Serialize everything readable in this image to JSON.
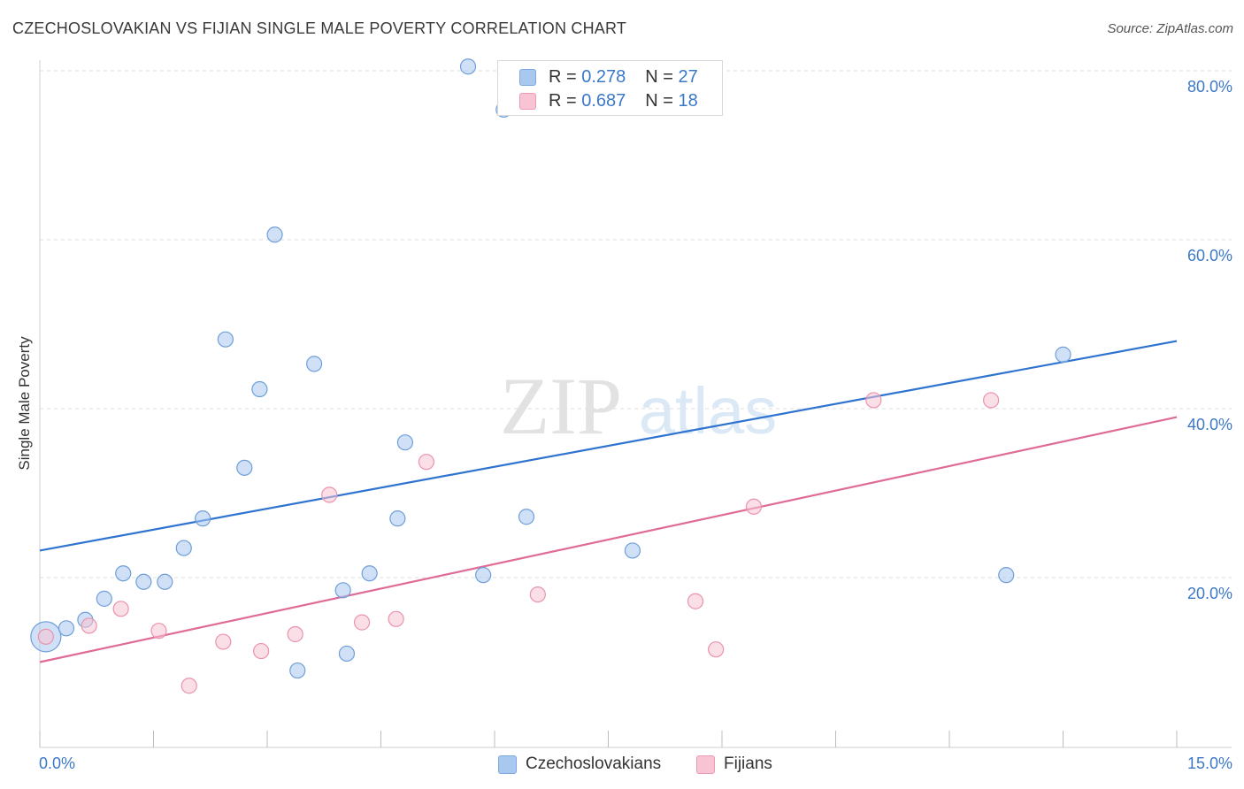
{
  "header": {
    "title": "CZECHOSLOVAKIAN VS FIJIAN SINGLE MALE POVERTY CORRELATION CHART",
    "source": "Source: ZipAtlas.com"
  },
  "watermark": {
    "zip": "ZIP",
    "atlas": "atlas"
  },
  "stats_legend": {
    "rows": [
      {
        "r_label": "R = ",
        "r_value": "0.278",
        "n_label": "N = ",
        "n_value": "27",
        "color": "#a9c8f0",
        "border": "#7aa8e0"
      },
      {
        "r_label": "R = ",
        "r_value": "0.687",
        "n_label": "N = ",
        "n_value": "18",
        "color": "#f8c4d4",
        "border": "#ec9ab4"
      }
    ]
  },
  "bottom_legend": {
    "items": [
      {
        "label": "Czechoslovakians",
        "color": "#a9c8f0",
        "border": "#7aa8e0"
      },
      {
        "label": "Fijians",
        "color": "#f8c4d4",
        "border": "#ec9ab4"
      }
    ]
  },
  "chart_data": {
    "type": "scatter",
    "title": "CZECHOSLOVAKIAN VS FIJIAN SINGLE MALE POVERTY CORRELATION CHART",
    "xlabel": "",
    "ylabel": "Single Male Poverty",
    "xlim": [
      0,
      15
    ],
    "ylim": [
      0,
      80
    ],
    "x_tick_labels": [
      "0.0%",
      "15.0%"
    ],
    "y_ticks": [
      20,
      40,
      60,
      80
    ],
    "y_tick_labels": [
      "20.0%",
      "40.0%",
      "60.0%",
      "80.0%"
    ],
    "grid": true,
    "series": [
      {
        "name": "Czechoslovakians",
        "color": "#a9c8f0",
        "stroke": "#6f9fd8",
        "line_color": "#2f73d0",
        "trend": {
          "x": [
            0,
            15
          ],
          "y": [
            23.2,
            48.0
          ]
        },
        "points": [
          {
            "x": 0.08,
            "y": 13.0,
            "big": true
          },
          {
            "x": 0.35,
            "y": 14.0
          },
          {
            "x": 0.6,
            "y": 15.0
          },
          {
            "x": 0.85,
            "y": 17.5
          },
          {
            "x": 1.1,
            "y": 20.5
          },
          {
            "x": 1.37,
            "y": 19.5
          },
          {
            "x": 1.65,
            "y": 19.5
          },
          {
            "x": 1.9,
            "y": 23.5
          },
          {
            "x": 2.15,
            "y": 27.0
          },
          {
            "x": 2.45,
            "y": 48.2
          },
          {
            "x": 2.7,
            "y": 33.0
          },
          {
            "x": 2.9,
            "y": 42.3
          },
          {
            "x": 3.1,
            "y": 60.6
          },
          {
            "x": 3.4,
            "y": 9.0
          },
          {
            "x": 3.62,
            "y": 45.3
          },
          {
            "x": 4.0,
            "y": 18.5
          },
          {
            "x": 4.05,
            "y": 11.0
          },
          {
            "x": 4.35,
            "y": 20.5
          },
          {
            "x": 4.72,
            "y": 27.0
          },
          {
            "x": 4.82,
            "y": 36.0
          },
          {
            "x": 5.65,
            "y": 80.5
          },
          {
            "x": 5.85,
            "y": 20.3
          },
          {
            "x": 6.12,
            "y": 75.4
          },
          {
            "x": 6.42,
            "y": 27.2
          },
          {
            "x": 7.82,
            "y": 23.2
          },
          {
            "x": 12.75,
            "y": 20.3
          },
          {
            "x": 13.5,
            "y": 46.4
          }
        ]
      },
      {
        "name": "Fijians",
        "color": "#f8c4d4",
        "stroke": "#ea93ae",
        "line_color": "#e06b97",
        "trend": {
          "x": [
            0,
            15
          ],
          "y": [
            10.0,
            39.0
          ]
        },
        "points": [
          {
            "x": 0.08,
            "y": 13.0
          },
          {
            "x": 0.65,
            "y": 14.3
          },
          {
            "x": 1.07,
            "y": 16.3
          },
          {
            "x": 1.57,
            "y": 13.7
          },
          {
            "x": 1.97,
            "y": 7.2
          },
          {
            "x": 2.42,
            "y": 12.4
          },
          {
            "x": 2.92,
            "y": 11.3
          },
          {
            "x": 3.37,
            "y": 13.3
          },
          {
            "x": 3.82,
            "y": 29.8
          },
          {
            "x": 4.25,
            "y": 14.7
          },
          {
            "x": 4.7,
            "y": 15.1
          },
          {
            "x": 5.1,
            "y": 33.7
          },
          {
            "x": 6.57,
            "y": 18.0
          },
          {
            "x": 8.65,
            "y": 17.2
          },
          {
            "x": 8.92,
            "y": 11.5
          },
          {
            "x": 9.42,
            "y": 28.4
          },
          {
            "x": 11.0,
            "y": 41.0
          },
          {
            "x": 12.55,
            "y": 41.0
          }
        ]
      }
    ]
  }
}
